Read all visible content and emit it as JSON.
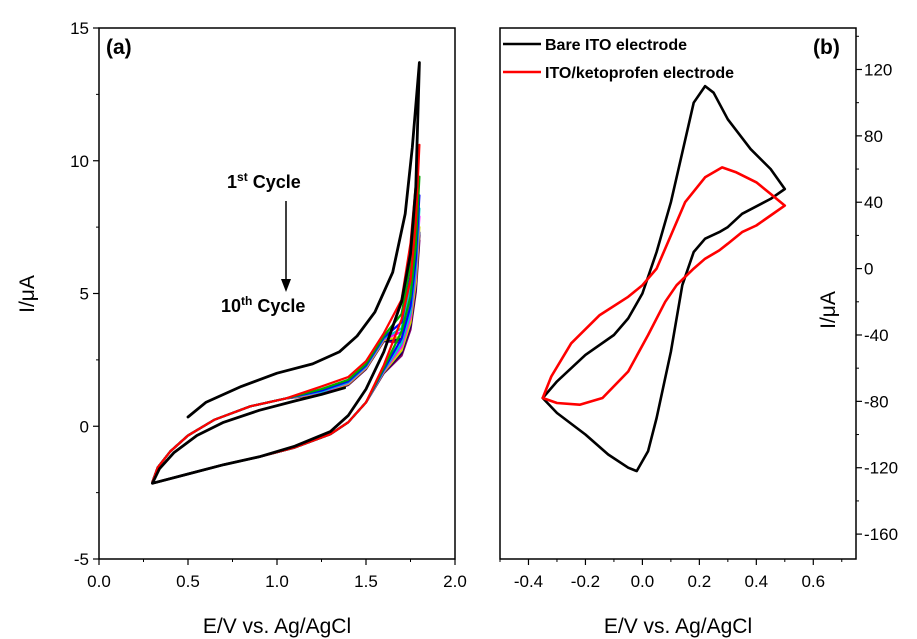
{
  "chart_data": [
    {
      "panel": "(a)",
      "type": "line",
      "xlabel": "E/V vs. Ag/AgCl",
      "ylabel": "I/μA",
      "xlim": [
        0.0,
        2.0
      ],
      "ylim": [
        -5,
        15
      ],
      "x_ticks": [
        "0.0",
        "0.5",
        "1.0",
        "1.5",
        "2.0"
      ],
      "y_ticks": [
        "-5",
        "0",
        "5",
        "10",
        "15"
      ],
      "annotation": {
        "first_num": "1",
        "first_sup": "st",
        "first_word": " Cycle",
        "last_num": "10",
        "last_sup": "th",
        "last_word": " Cycle"
      },
      "series": [
        {
          "color": "#000000",
          "upper_end": 13.7,
          "lower_peak": 2.35,
          "start": [
            0.5,
            0.35
          ],
          "points": [
            [
              0.5,
              0.35
            ],
            [
              0.6,
              0.9
            ],
            [
              0.8,
              1.5
            ],
            [
              1.0,
              2.0
            ],
            [
              1.2,
              2.35
            ],
            [
              1.35,
              2.8
            ],
            [
              1.45,
              3.4
            ],
            [
              1.55,
              4.3
            ],
            [
              1.65,
              5.8
            ],
            [
              1.72,
              8.0
            ],
            [
              1.76,
              10.5
            ],
            [
              1.8,
              13.7
            ],
            [
              1.78,
              9.0
            ],
            [
              1.75,
              6.5
            ],
            [
              1.7,
              4.7
            ],
            [
              1.6,
              2.8
            ],
            [
              1.5,
              1.4
            ],
            [
              1.4,
              0.4
            ],
            [
              1.3,
              -0.2
            ],
            [
              1.1,
              -0.75
            ],
            [
              0.9,
              -1.15
            ],
            [
              0.7,
              -1.45
            ],
            [
              0.5,
              -1.8
            ],
            [
              0.3,
              -2.15
            ],
            [
              0.34,
              -1.6
            ],
            [
              0.42,
              -1.0
            ],
            [
              0.55,
              -0.35
            ],
            [
              0.7,
              0.15
            ],
            [
              0.9,
              0.6
            ],
            [
              1.1,
              0.95
            ],
            [
              1.25,
              1.2
            ],
            [
              1.38,
              1.45
            ]
          ]
        },
        {
          "color": "#ff0000",
          "upper_end": 10.6,
          "points": [
            [
              0.3,
              -2.1
            ],
            [
              1.8,
              10.6
            ]
          ]
        },
        {
          "color": "#00aa00",
          "upper_end": 9.4,
          "points": [
            [
              0.3,
              -2.1
            ],
            [
              1.8,
              9.4
            ]
          ]
        },
        {
          "color": "#0000ff",
          "upper_end": 8.7,
          "points": [
            [
              0.3,
              -2.1
            ],
            [
              1.8,
              8.7
            ]
          ]
        },
        {
          "color": "#00c8c8",
          "upper_end": 8.2,
          "points": [
            [
              0.3,
              -2.1
            ],
            [
              1.8,
              8.2
            ]
          ]
        },
        {
          "color": "#ff00ff",
          "upper_end": 7.9,
          "points": [
            [
              0.3,
              -2.1
            ],
            [
              1.8,
              7.9
            ]
          ]
        },
        {
          "color": "#d4d400",
          "upper_end": 7.5,
          "points": [
            [
              0.3,
              -2.1
            ],
            [
              1.8,
              7.5
            ]
          ]
        },
        {
          "color": "#000080",
          "upper_end": 7.3,
          "points": [
            [
              0.3,
              -2.1
            ],
            [
              1.8,
              7.3
            ]
          ]
        },
        {
          "color": "#800000",
          "upper_end": 7.2,
          "points": [
            [
              0.3,
              -2.1
            ],
            [
              1.8,
              7.2
            ]
          ]
        },
        {
          "color": "#800080",
          "upper_end": 7.0,
          "points": [
            [
              0.3,
              -2.1
            ],
            [
              1.8,
              7.0
            ]
          ]
        }
      ]
    },
    {
      "panel": "(b)",
      "type": "line",
      "xlabel": "E/V vs. Ag/AgCl",
      "ylabel": "I/μA",
      "xlim": [
        -0.5,
        0.75
      ],
      "ylim": [
        -175,
        145
      ],
      "x_ticks": [
        "-0.4",
        "-0.2",
        "0.0",
        "0.2",
        "0.4",
        "0.6"
      ],
      "y_ticks": [
        "-160",
        "-120",
        "-80",
        "-40",
        "0",
        "40",
        "80",
        "120"
      ],
      "legend_position": "top-left",
      "series": [
        {
          "name": "Bare ITO electrode",
          "color": "#000000",
          "points": [
            [
              0.3,
              25
            ],
            [
              0.35,
              33
            ],
            [
              0.45,
              42
            ],
            [
              0.5,
              48
            ],
            [
              0.45,
              60
            ],
            [
              0.38,
              72
            ],
            [
              0.3,
              90
            ],
            [
              0.25,
              106
            ],
            [
              0.22,
              110
            ],
            [
              0.18,
              100
            ],
            [
              0.14,
              70
            ],
            [
              0.1,
              40
            ],
            [
              0.05,
              10
            ],
            [
              0.0,
              -15
            ],
            [
              -0.05,
              -30
            ],
            [
              -0.1,
              -40
            ],
            [
              -0.2,
              -52
            ],
            [
              -0.3,
              -68
            ],
            [
              -0.35,
              -78
            ],
            [
              -0.3,
              -87
            ],
            [
              -0.2,
              -100
            ],
            [
              -0.12,
              -112
            ],
            [
              -0.05,
              -120
            ],
            [
              -0.02,
              -122
            ],
            [
              0.02,
              -110
            ],
            [
              0.05,
              -90
            ],
            [
              0.1,
              -50
            ],
            [
              0.14,
              -10
            ],
            [
              0.18,
              10
            ],
            [
              0.22,
              18
            ],
            [
              0.27,
              22
            ],
            [
              0.3,
              25
            ]
          ]
        },
        {
          "name": "ITO/ketoprofen electrode",
          "color": "#ff0000",
          "points": [
            [
              0.3,
              15
            ],
            [
              0.35,
              22
            ],
            [
              0.4,
              26
            ],
            [
              0.45,
              32
            ],
            [
              0.5,
              38
            ],
            [
              0.45,
              45
            ],
            [
              0.4,
              52
            ],
            [
              0.33,
              58
            ],
            [
              0.28,
              61
            ],
            [
              0.22,
              55
            ],
            [
              0.15,
              40
            ],
            [
              0.1,
              20
            ],
            [
              0.05,
              0
            ],
            [
              0.0,
              -10
            ],
            [
              -0.05,
              -17
            ],
            [
              -0.15,
              -28
            ],
            [
              -0.25,
              -45
            ],
            [
              -0.32,
              -65
            ],
            [
              -0.35,
              -78
            ],
            [
              -0.3,
              -81
            ],
            [
              -0.22,
              -82
            ],
            [
              -0.14,
              -78
            ],
            [
              -0.05,
              -62
            ],
            [
              0.02,
              -40
            ],
            [
              0.08,
              -20
            ],
            [
              0.12,
              -10
            ],
            [
              0.18,
              0
            ],
            [
              0.22,
              6
            ],
            [
              0.27,
              11
            ],
            [
              0.3,
              15
            ]
          ]
        }
      ]
    }
  ]
}
